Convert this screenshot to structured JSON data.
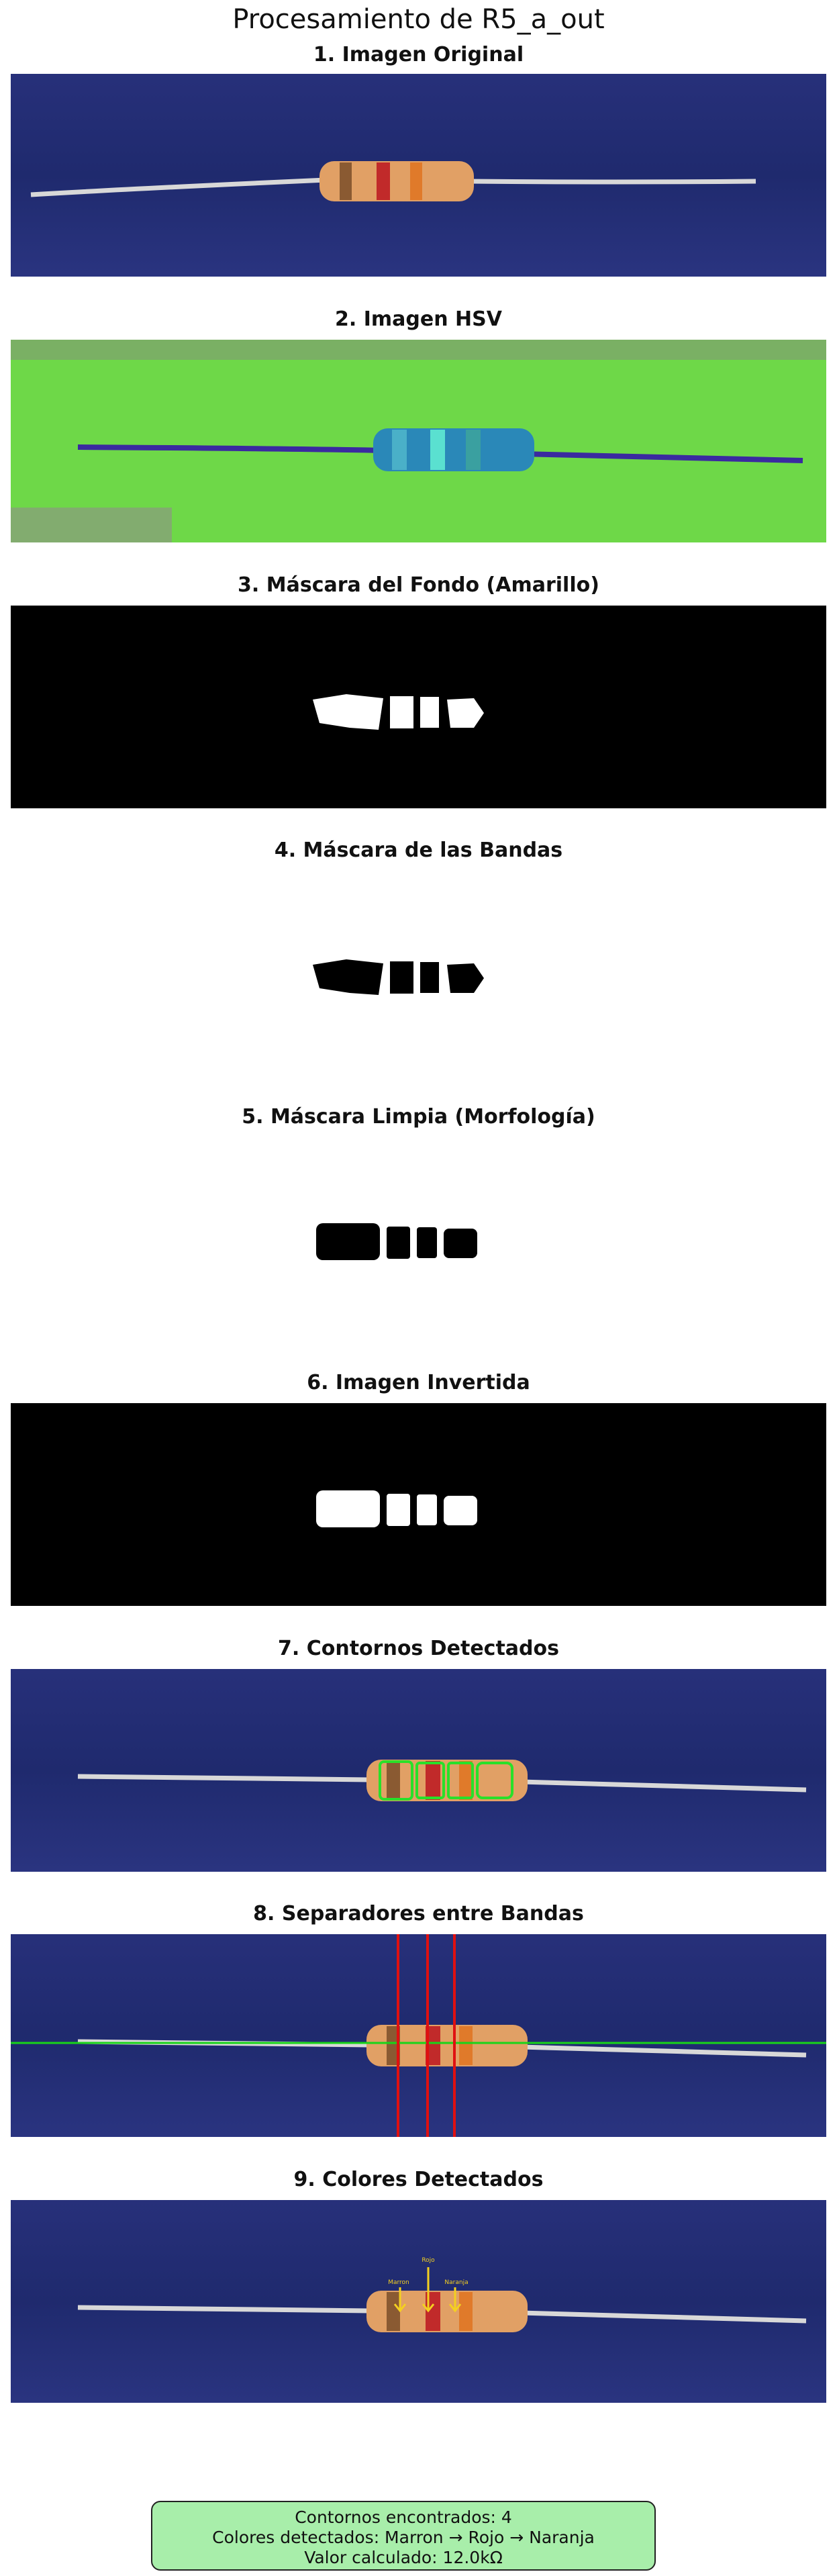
{
  "title": "Procesamiento de R5_a_out",
  "panels": [
    {
      "title": "1. Imagen Original"
    },
    {
      "title": "2. Imagen HSV"
    },
    {
      "title": "3. Máscara del Fondo (Amarillo)"
    },
    {
      "title": "4. Máscara de las Bandas"
    },
    {
      "title": "5. Máscara Limpia (Morfología)"
    },
    {
      "title": "6. Imagen Invertida"
    },
    {
      "title": "7. Contornos Detectados"
    },
    {
      "title": "8. Separadores entre Bandas"
    },
    {
      "title": "9. Colores Detectados"
    }
  ],
  "annotations": {
    "band1": "Marron",
    "band2": "Rojo",
    "band3": "Naranja"
  },
  "summary": {
    "line1": "Contornos encontrados: 4",
    "line2": "Colores detectados: Marron → Rojo → Naranja",
    "line3": "Valor calculado: 12.0kΩ"
  },
  "colors": {
    "background_blue": "#1f2a6e",
    "hsv_green": "#6ed848",
    "resistor_body": "#d99a5a",
    "band_brown": "#7a4a2a",
    "band_red": "#c0282a",
    "band_orange": "#e07a2a",
    "separator_red": "#e01010",
    "line_green": "#19d419",
    "arrow_yellow": "#f4d020",
    "summary_bg": "#a8eeaa"
  }
}
